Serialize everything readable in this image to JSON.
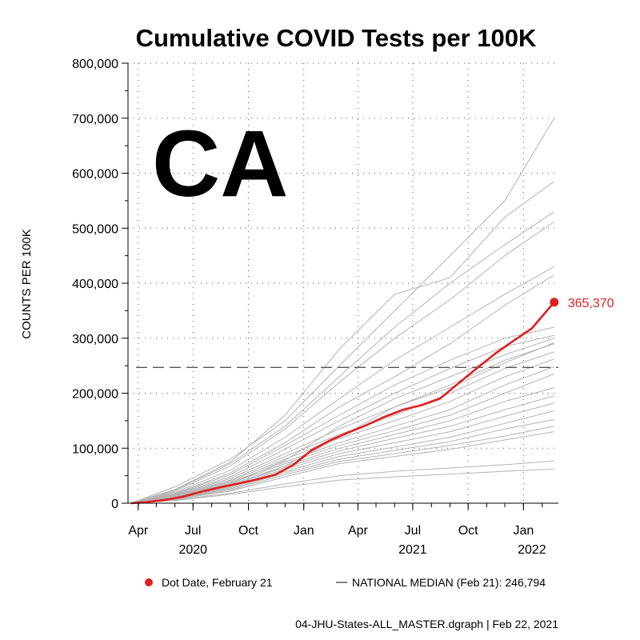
{
  "chart_data": {
    "type": "line",
    "title": "Cumulative COVID Tests per 100K",
    "state_label": "CA",
    "ylabel": "COUNTS PER 100K",
    "ylim": [
      0,
      800000
    ],
    "y_ticks": [
      0,
      100000,
      200000,
      300000,
      400000,
      500000,
      600000,
      700000,
      800000
    ],
    "y_tick_labels": [
      "0",
      "100,000",
      "200,000",
      "300,000",
      "400,000",
      "500,000",
      "600,000",
      "700,000",
      "800,000"
    ],
    "x_range": [
      "2020-03-15",
      "2022-02-28"
    ],
    "x_ticks": [
      {
        "date": "2020-04-01",
        "label": "Apr"
      },
      {
        "date": "2020-07-01",
        "label": "Jul"
      },
      {
        "date": "2020-10-01",
        "label": "Oct"
      },
      {
        "date": "2021-01-01",
        "label": "Jan"
      },
      {
        "date": "2021-04-01",
        "label": "Apr"
      },
      {
        "date": "2021-07-01",
        "label": "Jul"
      },
      {
        "date": "2021-10-01",
        "label": "Oct"
      },
      {
        "date": "2022-01-01",
        "label": "Jan"
      }
    ],
    "x_year_labels": [
      {
        "date": "2020-07-01",
        "label": "2020"
      },
      {
        "date": "2021-07-01",
        "label": "2021"
      },
      {
        "date": "2022-01-15",
        "label": "2022"
      }
    ],
    "highlight_series": {
      "name": "CA",
      "color": "#e02020",
      "points": [
        [
          "2020-03-20",
          0
        ],
        [
          "2020-04-15",
          2000
        ],
        [
          "2020-05-15",
          6000
        ],
        [
          "2020-06-15",
          12000
        ],
        [
          "2020-07-15",
          21000
        ],
        [
          "2020-08-15",
          29000
        ],
        [
          "2020-09-15",
          36000
        ],
        [
          "2020-10-15",
          43000
        ],
        [
          "2020-11-15",
          52000
        ],
        [
          "2020-12-15",
          70000
        ],
        [
          "2021-01-15",
          97000
        ],
        [
          "2021-02-15",
          115000
        ],
        [
          "2021-03-15",
          128000
        ],
        [
          "2021-04-15",
          142000
        ],
        [
          "2021-05-15",
          157000
        ],
        [
          "2021-06-15",
          170000
        ],
        [
          "2021-07-15",
          178000
        ],
        [
          "2021-08-15",
          190000
        ],
        [
          "2021-09-15",
          218000
        ],
        [
          "2021-10-15",
          245000
        ],
        [
          "2021-11-15",
          272000
        ],
        [
          "2021-12-15",
          295000
        ],
        [
          "2022-01-15",
          318000
        ],
        [
          "2022-02-21",
          365370
        ]
      ],
      "end_label": "365,370"
    },
    "national_median": {
      "value": 246794,
      "style": "dashed",
      "color": "#555555"
    },
    "background_series": [
      {
        "points": [
          [
            "2020-03-20",
            0
          ],
          [
            "2020-06-01",
            30000
          ],
          [
            "2020-09-01",
            80000
          ],
          [
            "2020-12-01",
            150000
          ],
          [
            "2021-03-01",
            250000
          ],
          [
            "2021-06-01",
            350000
          ],
          [
            "2021-09-01",
            450000
          ],
          [
            "2021-12-01",
            550000
          ],
          [
            "2022-02-21",
            700000
          ]
        ]
      },
      {
        "points": [
          [
            "2020-03-20",
            0
          ],
          [
            "2020-06-01",
            25000
          ],
          [
            "2020-09-01",
            75000
          ],
          [
            "2020-12-01",
            160000
          ],
          [
            "2021-03-01",
            280000
          ],
          [
            "2021-06-01",
            380000
          ],
          [
            "2021-09-01",
            410000
          ],
          [
            "2021-12-01",
            520000
          ],
          [
            "2022-02-21",
            585000
          ]
        ]
      },
      {
        "points": [
          [
            "2020-03-20",
            0
          ],
          [
            "2020-06-01",
            24000
          ],
          [
            "2020-09-01",
            72000
          ],
          [
            "2020-12-01",
            140000
          ],
          [
            "2021-03-01",
            230000
          ],
          [
            "2021-06-01",
            320000
          ],
          [
            "2021-09-01",
            400000
          ],
          [
            "2021-12-01",
            470000
          ],
          [
            "2022-02-21",
            530000
          ]
        ]
      },
      {
        "points": [
          [
            "2020-03-20",
            0
          ],
          [
            "2020-06-01",
            22000
          ],
          [
            "2020-09-01",
            68000
          ],
          [
            "2020-12-01",
            135000
          ],
          [
            "2021-03-01",
            220000
          ],
          [
            "2021-06-01",
            300000
          ],
          [
            "2021-09-01",
            370000
          ],
          [
            "2021-12-01",
            450000
          ],
          [
            "2022-02-21",
            512000
          ]
        ]
      },
      {
        "points": [
          [
            "2020-03-20",
            0
          ],
          [
            "2020-06-01",
            20000
          ],
          [
            "2020-09-01",
            60000
          ],
          [
            "2020-12-01",
            120000
          ],
          [
            "2021-03-01",
            190000
          ],
          [
            "2021-06-01",
            260000
          ],
          [
            "2021-09-01",
            320000
          ],
          [
            "2021-12-01",
            380000
          ],
          [
            "2022-02-21",
            430000
          ]
        ]
      },
      {
        "points": [
          [
            "2020-03-20",
            0
          ],
          [
            "2020-06-01",
            18000
          ],
          [
            "2020-09-01",
            55000
          ],
          [
            "2020-12-01",
            110000
          ],
          [
            "2021-03-01",
            175000
          ],
          [
            "2021-06-01",
            230000
          ],
          [
            "2021-09-01",
            290000
          ],
          [
            "2021-12-01",
            360000
          ],
          [
            "2022-02-21",
            415000
          ]
        ]
      },
      {
        "points": [
          [
            "2020-03-20",
            0
          ],
          [
            "2020-06-01",
            17000
          ],
          [
            "2020-09-01",
            52000
          ],
          [
            "2020-12-01",
            105000
          ],
          [
            "2021-03-01",
            160000
          ],
          [
            "2021-06-01",
            215000
          ],
          [
            "2021-09-01",
            260000
          ],
          [
            "2021-12-01",
            300000
          ],
          [
            "2022-02-21",
            320000
          ]
        ]
      },
      {
        "points": [
          [
            "2020-03-20",
            0
          ],
          [
            "2020-06-01",
            16000
          ],
          [
            "2020-09-01",
            48000
          ],
          [
            "2020-12-01",
            98000
          ],
          [
            "2021-03-01",
            150000
          ],
          [
            "2021-06-01",
            200000
          ],
          [
            "2021-09-01",
            245000
          ],
          [
            "2021-12-01",
            285000
          ],
          [
            "2022-02-21",
            305000
          ]
        ]
      },
      {
        "points": [
          [
            "2020-03-20",
            0
          ],
          [
            "2020-06-01",
            15000
          ],
          [
            "2020-09-01",
            45000
          ],
          [
            "2020-12-01",
            90000
          ],
          [
            "2021-03-01",
            135000
          ],
          [
            "2021-06-01",
            175000
          ],
          [
            "2021-09-01",
            215000
          ],
          [
            "2021-12-01",
            260000
          ],
          [
            "2022-02-21",
            290000
          ]
        ]
      },
      {
        "points": [
          [
            "2020-03-20",
            0
          ],
          [
            "2020-06-01",
            14000
          ],
          [
            "2020-09-01",
            42000
          ],
          [
            "2020-12-01",
            85000
          ],
          [
            "2021-03-01",
            125000
          ],
          [
            "2021-06-01",
            160000
          ],
          [
            "2021-09-01",
            200000
          ],
          [
            "2021-12-01",
            245000
          ],
          [
            "2022-02-21",
            275000
          ]
        ]
      },
      {
        "points": [
          [
            "2020-03-20",
            0
          ],
          [
            "2020-06-01",
            13000
          ],
          [
            "2020-09-01",
            40000
          ],
          [
            "2020-12-01",
            80000
          ],
          [
            "2021-03-01",
            118000
          ],
          [
            "2021-06-01",
            150000
          ],
          [
            "2021-09-01",
            185000
          ],
          [
            "2021-12-01",
            230000
          ],
          [
            "2022-02-21",
            262000
          ]
        ]
      },
      {
        "points": [
          [
            "2020-03-20",
            0
          ],
          [
            "2020-06-01",
            12000
          ],
          [
            "2020-09-01",
            38000
          ],
          [
            "2020-12-01",
            75000
          ],
          [
            "2021-03-01",
            110000
          ],
          [
            "2021-06-01",
            140000
          ],
          [
            "2021-09-01",
            170000
          ],
          [
            "2021-12-01",
            215000
          ],
          [
            "2022-02-21",
            248000
          ]
        ]
      },
      {
        "points": [
          [
            "2020-03-20",
            0
          ],
          [
            "2020-06-01",
            12000
          ],
          [
            "2020-09-01",
            36000
          ],
          [
            "2020-12-01",
            72000
          ],
          [
            "2021-03-01",
            105000
          ],
          [
            "2021-06-01",
            132000
          ],
          [
            "2021-09-01",
            160000
          ],
          [
            "2021-12-01",
            200000
          ],
          [
            "2022-02-21",
            235000
          ]
        ]
      },
      {
        "points": [
          [
            "2020-03-20",
            0
          ],
          [
            "2020-06-01",
            11000
          ],
          [
            "2020-09-01",
            34000
          ],
          [
            "2020-12-01",
            68000
          ],
          [
            "2021-03-01",
            100000
          ],
          [
            "2021-06-01",
            125000
          ],
          [
            "2021-09-01",
            150000
          ],
          [
            "2021-12-01",
            185000
          ],
          [
            "2022-02-21",
            210000
          ]
        ]
      },
      {
        "points": [
          [
            "2020-03-20",
            0
          ],
          [
            "2020-06-01",
            10000
          ],
          [
            "2020-09-01",
            32000
          ],
          [
            "2020-12-01",
            65000
          ],
          [
            "2021-03-01",
            95000
          ],
          [
            "2021-06-01",
            118000
          ],
          [
            "2021-09-01",
            140000
          ],
          [
            "2021-12-01",
            170000
          ],
          [
            "2022-02-21",
            195000
          ]
        ]
      },
      {
        "points": [
          [
            "2020-03-20",
            0
          ],
          [
            "2020-06-01",
            10000
          ],
          [
            "2020-09-01",
            30000
          ],
          [
            "2020-12-01",
            62000
          ],
          [
            "2021-03-01",
            90000
          ],
          [
            "2021-06-01",
            110000
          ],
          [
            "2021-09-01",
            130000
          ],
          [
            "2021-12-01",
            158000
          ],
          [
            "2022-02-21",
            182000
          ]
        ]
      },
      {
        "points": [
          [
            "2020-03-20",
            0
          ],
          [
            "2020-06-01",
            9000
          ],
          [
            "2020-09-01",
            28000
          ],
          [
            "2020-12-01",
            58000
          ],
          [
            "2021-03-01",
            85000
          ],
          [
            "2021-06-01",
            102000
          ],
          [
            "2021-09-01",
            120000
          ],
          [
            "2021-12-01",
            145000
          ],
          [
            "2022-02-21",
            168000
          ]
        ]
      },
      {
        "points": [
          [
            "2020-03-20",
            0
          ],
          [
            "2020-06-01",
            8000
          ],
          [
            "2020-09-01",
            26000
          ],
          [
            "2020-12-01",
            55000
          ],
          [
            "2021-03-01",
            80000
          ],
          [
            "2021-06-01",
            96000
          ],
          [
            "2021-09-01",
            112000
          ],
          [
            "2021-12-01",
            135000
          ],
          [
            "2022-02-21",
            152000
          ]
        ]
      },
      {
        "points": [
          [
            "2020-03-20",
            0
          ],
          [
            "2020-06-01",
            8000
          ],
          [
            "2020-09-01",
            24000
          ],
          [
            "2020-12-01",
            52000
          ],
          [
            "2021-03-01",
            76000
          ],
          [
            "2021-06-01",
            90000
          ],
          [
            "2021-09-01",
            105000
          ],
          [
            "2021-12-01",
            122000
          ],
          [
            "2022-02-21",
            140000
          ]
        ]
      },
      {
        "points": [
          [
            "2020-03-20",
            0
          ],
          [
            "2020-06-01",
            7000
          ],
          [
            "2020-09-01",
            22000
          ],
          [
            "2020-12-01",
            48000
          ],
          [
            "2021-03-01",
            72000
          ],
          [
            "2021-06-01",
            85000
          ],
          [
            "2021-09-01",
            98000
          ],
          [
            "2021-12-01",
            115000
          ],
          [
            "2022-02-21",
            130000
          ]
        ]
      },
      {
        "points": [
          [
            "2020-03-20",
            0
          ],
          [
            "2020-06-01",
            6000
          ],
          [
            "2020-09-01",
            18000
          ],
          [
            "2020-12-01",
            35000
          ],
          [
            "2021-03-01",
            50000
          ],
          [
            "2021-06-01",
            58000
          ],
          [
            "2021-09-01",
            64000
          ],
          [
            "2021-12-01",
            70000
          ],
          [
            "2022-02-21",
            77000
          ]
        ]
      },
      {
        "points": [
          [
            "2020-03-20",
            0
          ],
          [
            "2020-06-01",
            5000
          ],
          [
            "2020-09-01",
            16000
          ],
          [
            "2020-12-01",
            30000
          ],
          [
            "2021-03-01",
            42000
          ],
          [
            "2021-06-01",
            48000
          ],
          [
            "2021-09-01",
            53000
          ],
          [
            "2021-12-01",
            58000
          ],
          [
            "2022-02-21",
            62000
          ]
        ]
      },
      {
        "points": [
          [
            "2020-03-20",
            0
          ],
          [
            "2020-06-01",
            9500
          ],
          [
            "2020-09-01",
            30000
          ],
          [
            "2020-12-01",
            68000
          ],
          [
            "2021-03-01",
            120000
          ],
          [
            "2021-06-01",
            175000
          ],
          [
            "2021-09-01",
            210000
          ],
          [
            "2021-12-01",
            255000
          ],
          [
            "2022-02-21",
            292000
          ]
        ]
      },
      {
        "points": [
          [
            "2020-03-20",
            0
          ],
          [
            "2020-06-01",
            11000
          ],
          [
            "2020-09-01",
            35000
          ],
          [
            "2020-12-01",
            78000
          ],
          [
            "2021-03-01",
            140000
          ],
          [
            "2021-06-01",
            190000
          ],
          [
            "2021-09-01",
            230000
          ],
          [
            "2021-12-01",
            270000
          ],
          [
            "2022-02-21",
            300000
          ]
        ]
      }
    ],
    "legend": [
      {
        "marker": "dot",
        "color": "#e02020",
        "label": "Dot Date, February 21"
      },
      {
        "marker": "line",
        "color": "#000000",
        "label": "NATIONAL MEDIAN (Feb 21): 246,794"
      }
    ],
    "footer": "04-JHU-States-ALL_MASTER.dgraph | Feb 22, 2021"
  }
}
